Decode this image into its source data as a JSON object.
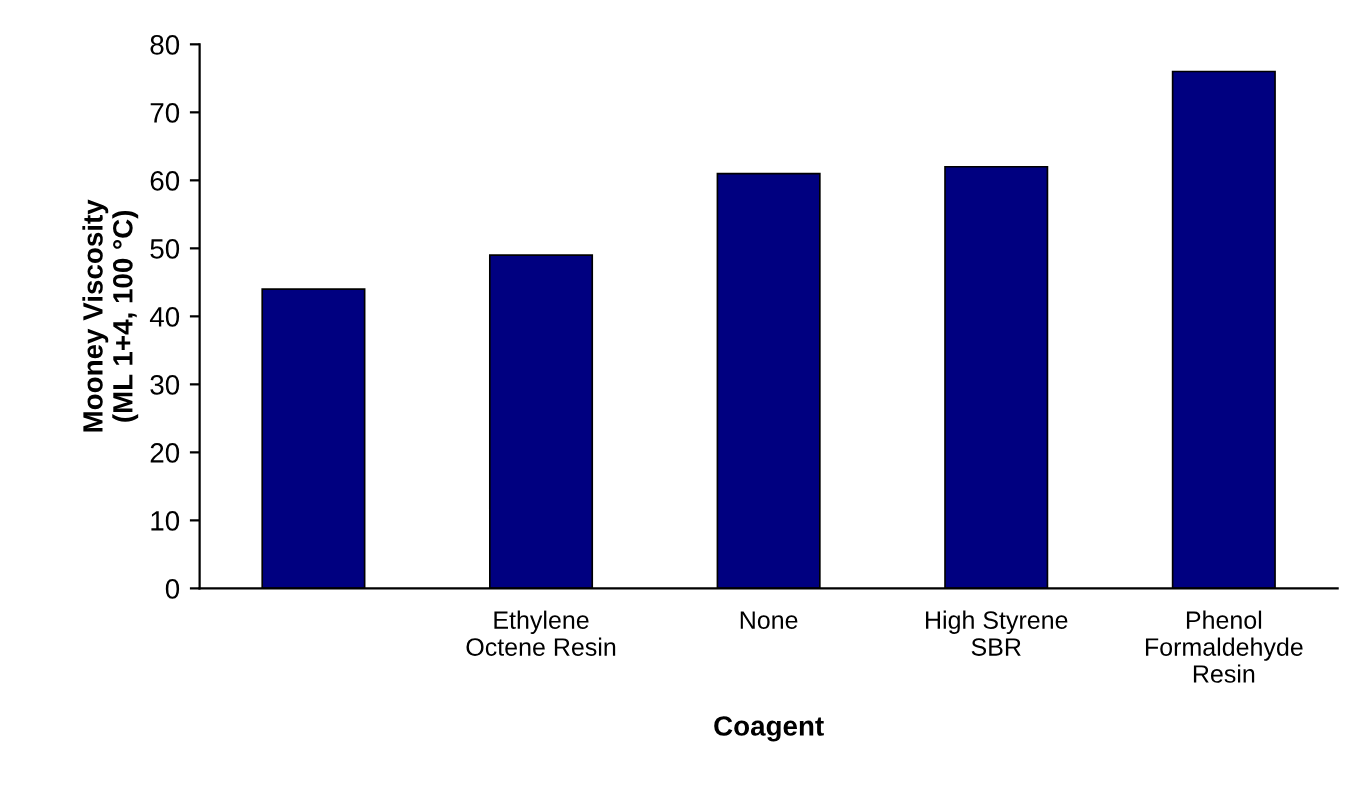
{
  "chart_data": {
    "type": "bar",
    "xlabel": "Coagent",
    "ylabel": "Mooney Viscosity\n(ML 1+4, 100 °C)",
    "categories": [
      null,
      "Ethylene\nOctene Resin",
      "None",
      "High Styrene\nSBR",
      "Phenol\nFormaldehyde\nResin"
    ],
    "values": [
      44,
      49,
      61,
      62,
      76
    ],
    "color": "#000080",
    "ylim": [
      0,
      80
    ],
    "yticks": [
      0,
      10,
      20,
      30,
      40,
      50,
      60,
      70,
      80
    ],
    "grid": false,
    "legend": false
  }
}
